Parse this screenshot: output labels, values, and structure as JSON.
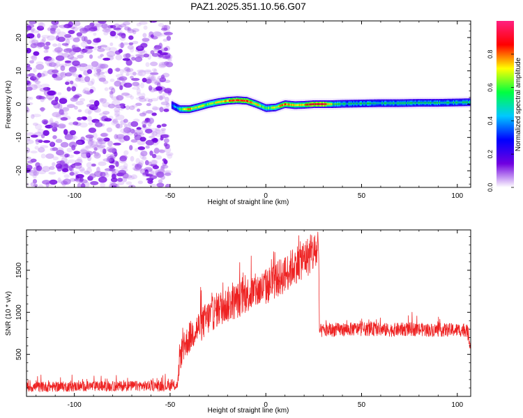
{
  "chart_data": [
    {
      "type": "heatmap",
      "title": "PAZ1.2025.351.10.56.G07",
      "xlabel": "Height of straight line (km)",
      "ylabel": "Frequency (Hz)",
      "xlim": [
        -125,
        107
      ],
      "ylim": [
        -25,
        25
      ],
      "xticks": [
        -100,
        -50,
        0,
        50,
        100
      ],
      "yticks": [
        -20,
        -10,
        0,
        10,
        20
      ],
      "colorbar": {
        "label": "Normalized spectral amplitude",
        "range": [
          0,
          1
        ],
        "ticks": [
          0.0,
          0.2,
          0.4,
          0.6,
          0.8
        ],
        "stops": [
          "#ffffff",
          "#7000e0",
          "#0000ff",
          "#00c8ff",
          "#00ff40",
          "#ffff00",
          "#ff0000",
          "#ff2080"
        ]
      },
      "noise_region": {
        "x": [
          -125,
          -50
        ],
        "y": [
          -25,
          25
        ],
        "amplitude_range": [
          0.0,
          0.15
        ]
      },
      "ridge": {
        "x": [
          -49,
          -45,
          -40,
          -35,
          -30,
          -25,
          -20,
          -15,
          -10,
          -5,
          0,
          5,
          10,
          15,
          20,
          25,
          30,
          35,
          40,
          50,
          60,
          70,
          80,
          90,
          100,
          107
        ],
        "frequency": [
          -0.3,
          -1.5,
          -1.5,
          -0.8,
          0.0,
          0.6,
          1.0,
          1.2,
          1.0,
          0.0,
          -1.2,
          -1.0,
          0.0,
          -0.3,
          -0.2,
          0.0,
          0.0,
          0.0,
          0.1,
          0.2,
          0.3,
          0.3,
          0.4,
          0.4,
          0.5,
          0.6
        ],
        "amplitude": [
          0.3,
          0.55,
          0.75,
          0.7,
          0.6,
          0.7,
          0.8,
          0.85,
          0.8,
          0.7,
          0.6,
          0.7,
          0.8,
          0.7,
          0.75,
          0.9,
          0.95,
          0.6,
          0.5,
          0.5,
          0.5,
          0.5,
          0.5,
          0.5,
          0.5,
          0.5
        ]
      }
    },
    {
      "type": "line",
      "title": "",
      "xlabel": "Height of straight line (km)",
      "ylabel": "SNR (10 * v/v)",
      "xlim": [
        -125,
        107
      ],
      "ylim": [
        0,
        1980
      ],
      "xticks": [
        -100,
        -50,
        0,
        50,
        100
      ],
      "yticks": [
        500,
        1000,
        1500
      ],
      "series": [
        {
          "name": "SNR",
          "color": "#ee2222",
          "x": [
            -125,
            -110,
            -95,
            -80,
            -65,
            -55,
            -46,
            -45,
            -42,
            -38,
            -34,
            -30,
            -25,
            -20,
            -15,
            -10,
            -5,
            0,
            5,
            10,
            15,
            20,
            25,
            27.5,
            28,
            35,
            45,
            55,
            65,
            75,
            85,
            95,
            105,
            107
          ],
          "y": [
            110,
            115,
            120,
            120,
            125,
            120,
            130,
            480,
            620,
            760,
            850,
            940,
            1040,
            1090,
            1140,
            1210,
            1250,
            1300,
            1380,
            1450,
            1560,
            1640,
            1700,
            1730,
            780,
            790,
            800,
            800,
            790,
            800,
            790,
            790,
            790,
            600
          ],
          "noise_amplitude": [
            120,
            120,
            120,
            120,
            120,
            120,
            120,
            350,
            350,
            380,
            400,
            420,
            420,
            430,
            430,
            430,
            430,
            440,
            440,
            450,
            460,
            470,
            480,
            480,
            160,
            160,
            160,
            160,
            160,
            160,
            160,
            160,
            160,
            160
          ]
        }
      ]
    }
  ]
}
